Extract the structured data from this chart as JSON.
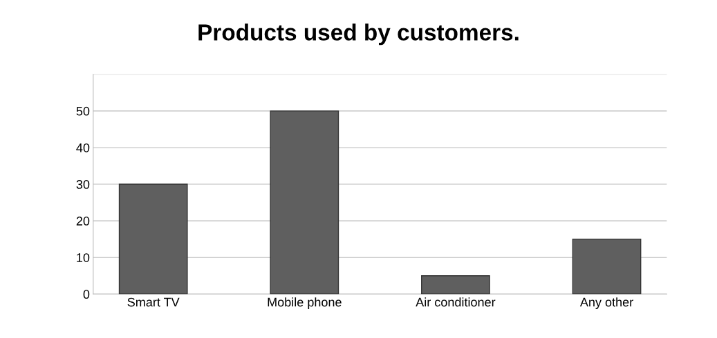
{
  "chart_data": {
    "type": "bar",
    "title": "Products used by customers.",
    "categories": [
      "Smart TV",
      "Mobile phone",
      "Air conditioner",
      "Any other"
    ],
    "values": [
      30,
      50,
      5,
      15
    ],
    "color": "#5f5f5f",
    "ylim": [
      0,
      60
    ],
    "yticks": [
      0,
      10,
      20,
      30,
      40,
      50,
      {
        "value": 60,
        "label": null
      }
    ],
    "grid": "y"
  }
}
